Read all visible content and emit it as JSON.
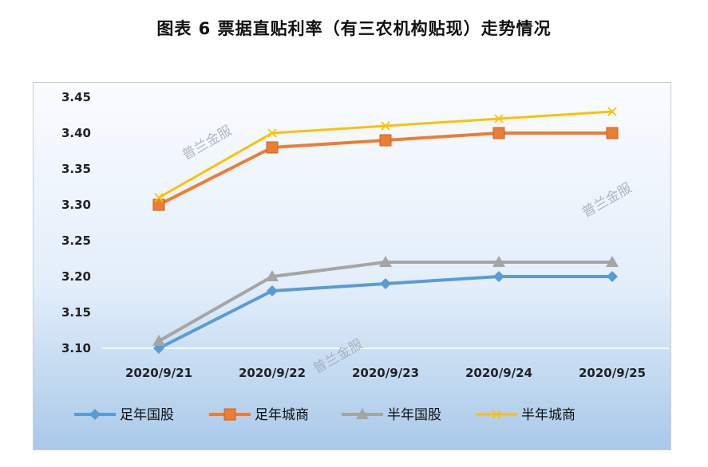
{
  "title": "图表 6  票据直贴利率（有三农机构贴现）走势情况",
  "watermark": "普兰金服",
  "chart_data": {
    "type": "line",
    "categories": [
      "2020/9/21",
      "2020/9/22",
      "2020/9/23",
      "2020/9/24",
      "2020/9/25"
    ],
    "ylim": [
      3.1,
      3.45
    ],
    "yticks": [
      "3.10",
      "3.15",
      "3.20",
      "3.25",
      "3.30",
      "3.35",
      "3.40",
      "3.45"
    ],
    "grid": false,
    "legend_position": "bottom",
    "series": [
      {
        "name": "足年国股",
        "values": [
          3.1,
          3.18,
          3.19,
          3.2,
          3.2
        ],
        "color": "#5b9bd5",
        "marker": "diamond"
      },
      {
        "name": "足年城商",
        "values": [
          3.3,
          3.38,
          3.39,
          3.4,
          3.4
        ],
        "color": "#ed7d31",
        "marker": "square"
      },
      {
        "name": "半年国股",
        "values": [
          3.11,
          3.2,
          3.22,
          3.22,
          3.22
        ],
        "color": "#a5a5a5",
        "marker": "triangle"
      },
      {
        "name": "半年城商",
        "values": [
          3.31,
          3.4,
          3.41,
          3.42,
          3.43
        ],
        "color": "#ffc000",
        "marker": "x"
      }
    ]
  }
}
